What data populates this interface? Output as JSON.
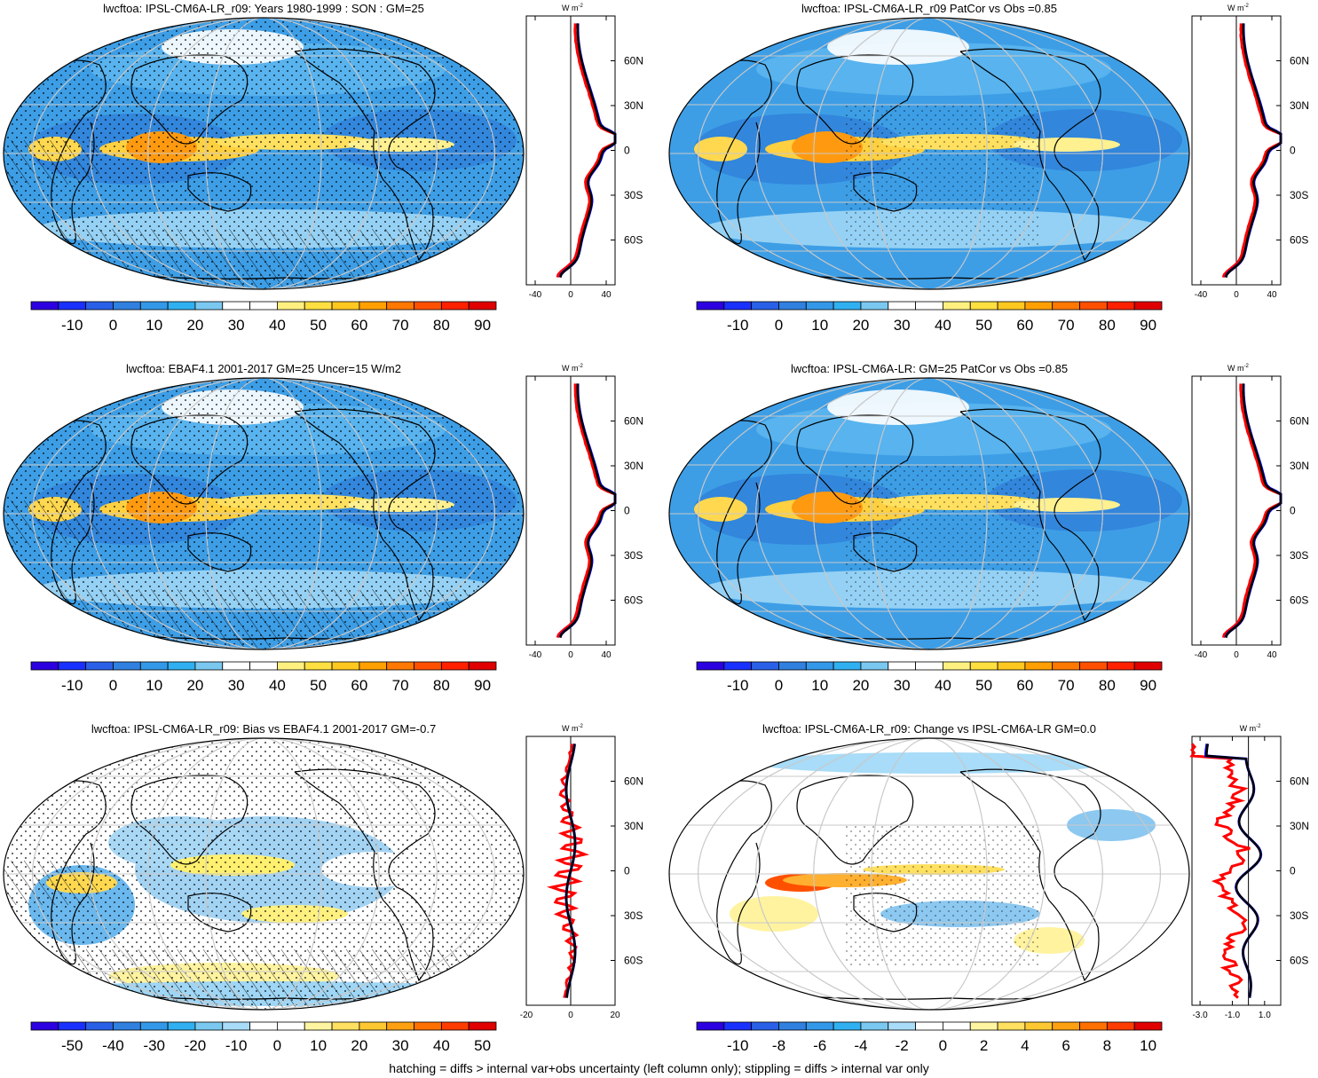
{
  "footer": "hatching = diffs > internal var+obs uncertainty (left column only); stippling = diffs > internal var only",
  "zonal_unit": "W m",
  "zonal_unit_sup": "-2",
  "lat_labels": [
    "60N",
    "30N",
    "0",
    "30S",
    "60S"
  ],
  "colors": {
    "line_model": "#ff0000",
    "line_obs": "#0000ff",
    "line_mean": "#000000",
    "ocean_blue": "#3aa0e8",
    "land_outline": "#000000",
    "grid": "#c8c8c8"
  },
  "panels": [
    {
      "title": "lwcftoa: IPSL-CM6A-LR_r09: Years 1980-1999 : SON : GM=25",
      "map_style": "abs",
      "colorbar_labels": [
        "-10",
        "0",
        "10",
        "20",
        "30",
        "40",
        "50",
        "60",
        "70",
        "80",
        "90"
      ],
      "zonal_ticks": [
        "-40",
        "0",
        "40"
      ],
      "zonal_range": [
        -50,
        50
      ],
      "zonal_zero": 0
    },
    {
      "title": "lwcftoa: IPSL-CM6A-LR_r09 PatCor vs Obs =0.85",
      "map_style": "abs",
      "colorbar_labels": [
        "-10",
        "0",
        "10",
        "20",
        "30",
        "40",
        "50",
        "60",
        "70",
        "80",
        "90"
      ],
      "zonal_ticks": [
        "-40",
        "0",
        "40"
      ],
      "zonal_range": [
        -50,
        50
      ],
      "zonal_zero": 0
    },
    {
      "title": "lwcftoa: EBAF4.1 2001-2017 GM=25 Uncer=15 W/m2",
      "map_style": "abs",
      "colorbar_labels": [
        "-10",
        "0",
        "10",
        "20",
        "30",
        "40",
        "50",
        "60",
        "70",
        "80",
        "90"
      ],
      "zonal_ticks": [
        "-40",
        "0",
        "40"
      ],
      "zonal_range": [
        -50,
        50
      ],
      "zonal_zero": 0
    },
    {
      "title": "lwcftoa: IPSL-CM6A-LR: GM=25 PatCor vs Obs =0.85",
      "map_style": "abs",
      "colorbar_labels": [
        "-10",
        "0",
        "10",
        "20",
        "30",
        "40",
        "50",
        "60",
        "70",
        "80",
        "90"
      ],
      "zonal_ticks": [
        "-40",
        "0",
        "40"
      ],
      "zonal_range": [
        -50,
        50
      ],
      "zonal_zero": 0
    },
    {
      "title": "lwcftoa: IPSL-CM6A-LR_r09: Bias vs EBAF4.1 2001-2017  GM=-0.7",
      "map_style": "bias",
      "colorbar_labels": [
        "-50",
        "-40",
        "-30",
        "-20",
        "-10",
        "0",
        "10",
        "20",
        "30",
        "40",
        "50"
      ],
      "zonal_ticks": [
        "-20",
        "0",
        "20"
      ],
      "zonal_range": [
        -20,
        20
      ],
      "zonal_zero": 0
    },
    {
      "title": "lwcftoa: IPSL-CM6A-LR_r09: Change vs IPSL-CM6A-LR GM=0.0",
      "map_style": "change",
      "colorbar_labels": [
        "-10",
        "-8",
        "-6",
        "-4",
        "-2",
        "0",
        "2",
        "4",
        "6",
        "8",
        "10"
      ],
      "zonal_ticks": [
        "-3.0",
        "-1.0",
        "1.0"
      ],
      "zonal_range": [
        -3.5,
        2.0
      ],
      "zonal_zero": 0
    }
  ]
}
